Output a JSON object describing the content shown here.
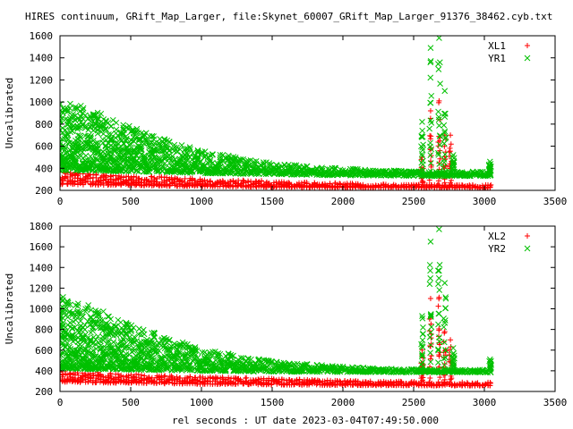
{
  "title": "HIRES continuum, GRift_Map_Larger, file:Skynet_60007_GRift_Map_Larger_91376_38462.cyb.txt",
  "xlabel": "rel seconds : UT date 2023-03-04T07:49:50.000",
  "colors": {
    "red": "#ff0000",
    "green": "#00c000",
    "axis": "#000000"
  },
  "chart_data": [
    {
      "type": "scatter",
      "title": "",
      "xlabel": "",
      "ylabel": "Uncalibrated",
      "xlim": [
        0,
        3500
      ],
      "ylim": [
        200,
        1600
      ],
      "xticks": [
        0,
        500,
        1000,
        1500,
        2000,
        2500,
        3000,
        3500
      ],
      "yticks": [
        200,
        400,
        600,
        800,
        1000,
        1200,
        1400,
        1600
      ],
      "grid": false,
      "legend_position": "top-right",
      "series": [
        {
          "name": "XL1",
          "marker": "plus",
          "color": "#ff0000",
          "envelope": {
            "x": [
              0,
              250,
              500,
              750,
              1000,
              1250,
              1500,
              1750,
              2000,
              2250,
              2500,
              2750,
              3050
            ],
            "low": [
              255,
              250,
              245,
              240,
              235,
              232,
              230,
              228,
              226,
              225,
              224,
              222,
              220
            ],
            "high": [
              370,
              350,
              335,
              320,
              305,
              295,
              285,
              275,
              265,
              258,
              252,
              248,
              250
            ]
          },
          "spikes": [
            {
              "x": 2560,
              "y": 500
            },
            {
              "x": 2620,
              "y": 920
            },
            {
              "x": 2680,
              "y": 1010
            },
            {
              "x": 2720,
              "y": 700
            },
            {
              "x": 2760,
              "y": 700
            }
          ]
        },
        {
          "name": "YR1",
          "marker": "cross",
          "color": "#00c000",
          "envelope": {
            "x": [
              0,
              250,
              500,
              750,
              1000,
              1250,
              1500,
              1750,
              2000,
              2250,
              2500,
              2750,
              3050
            ],
            "low": [
              380,
              375,
              370,
              365,
              355,
              350,
              345,
              340,
              335,
              333,
              330,
              330,
              330
            ],
            "high": [
              1030,
              920,
              780,
              660,
              560,
              500,
              450,
              420,
              400,
              385,
              375,
              370,
              370
            ]
          },
          "spikes": [
            {
              "x": 2560,
              "y": 820
            },
            {
              "x": 2620,
              "y": 1490
            },
            {
              "x": 2680,
              "y": 1580
            },
            {
              "x": 2720,
              "y": 1100
            },
            {
              "x": 2780,
              "y": 520
            },
            {
              "x": 3040,
              "y": 460
            }
          ]
        }
      ]
    },
    {
      "type": "scatter",
      "title": "",
      "xlabel": "rel seconds : UT date 2023-03-04T07:49:50.000",
      "ylabel": "Uncalibrated",
      "xlim": [
        0,
        3500
      ],
      "ylim": [
        200,
        1800
      ],
      "xticks": [
        0,
        500,
        1000,
        1500,
        2000,
        2500,
        3000,
        3500
      ],
      "yticks": [
        200,
        400,
        600,
        800,
        1000,
        1200,
        1400,
        1600,
        1800
      ],
      "grid": false,
      "legend_position": "top-right",
      "series": [
        {
          "name": "XL2",
          "marker": "plus",
          "color": "#ff0000",
          "envelope": {
            "x": [
              0,
              250,
              500,
              750,
              1000,
              1250,
              1500,
              1750,
              2000,
              2250,
              2500,
              2750,
              3050
            ],
            "low": [
              290,
              285,
              280,
              275,
              270,
              268,
              265,
              262,
              260,
              258,
              256,
              255,
              255
            ],
            "high": [
              400,
              385,
              370,
              355,
              345,
              335,
              325,
              315,
              305,
              300,
              295,
              290,
              290
            ]
          },
          "spikes": [
            {
              "x": 2560,
              "y": 600
            },
            {
              "x": 2620,
              "y": 1100
            },
            {
              "x": 2680,
              "y": 1110
            },
            {
              "x": 2720,
              "y": 780
            },
            {
              "x": 2760,
              "y": 700
            }
          ]
        },
        {
          "name": "YR2",
          "marker": "cross",
          "color": "#00c000",
          "envelope": {
            "x": [
              0,
              250,
              500,
              750,
              1000,
              1250,
              1500,
              1750,
              2000,
              2250,
              2500,
              2750,
              3050
            ],
            "low": [
              420,
              415,
              410,
              405,
              400,
              395,
              392,
              390,
              388,
              386,
              385,
              385,
              385
            ],
            "high": [
              1130,
              1010,
              860,
              730,
              620,
              550,
              500,
              465,
              440,
              425,
              415,
              410,
              410
            ]
          },
          "spikes": [
            {
              "x": 2560,
              "y": 930
            },
            {
              "x": 2620,
              "y": 1650
            },
            {
              "x": 2680,
              "y": 1770
            },
            {
              "x": 2720,
              "y": 1250
            },
            {
              "x": 2780,
              "y": 620
            },
            {
              "x": 3040,
              "y": 510
            }
          ]
        }
      ]
    }
  ]
}
